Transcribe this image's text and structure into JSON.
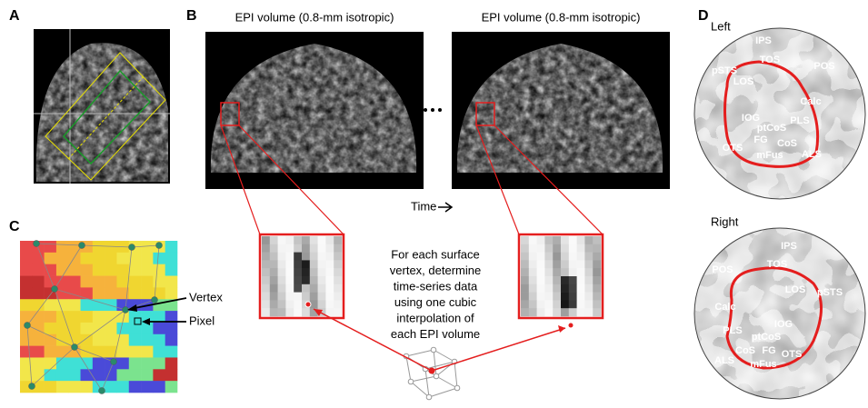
{
  "panels": {
    "a": {
      "label": "A"
    },
    "b": {
      "label": "B",
      "volume_titles": [
        "EPI volume (0.8-mm isotropic)",
        "EPI volume (0.8-mm isotropic)"
      ],
      "time_label": "Time",
      "description_lines": [
        "For each surface",
        "vertex, determine",
        "time-series data",
        "using one cubic",
        "interpolation of",
        "each EPI volume"
      ]
    },
    "c": {
      "label": "C",
      "annotations": [
        "Vertex",
        "Pixel"
      ]
    },
    "d": {
      "label": "D",
      "hemispheres": [
        {
          "name": "Left",
          "regions": [
            "IPS",
            "TOS",
            "POS",
            "pSTS",
            "LOS",
            "Calc",
            "IOG",
            "ptCoS",
            "PLS",
            "FG",
            "CoS",
            "OTS",
            "mFus",
            "ALS"
          ]
        },
        {
          "name": "Right",
          "regions": [
            "IPS",
            "TOS",
            "POS",
            "LOS",
            "pSTS",
            "Calc",
            "PLS",
            "IOG",
            "ptCoS",
            "CoS",
            "FG",
            "OTS",
            "ALS",
            "mFus"
          ]
        }
      ]
    }
  }
}
